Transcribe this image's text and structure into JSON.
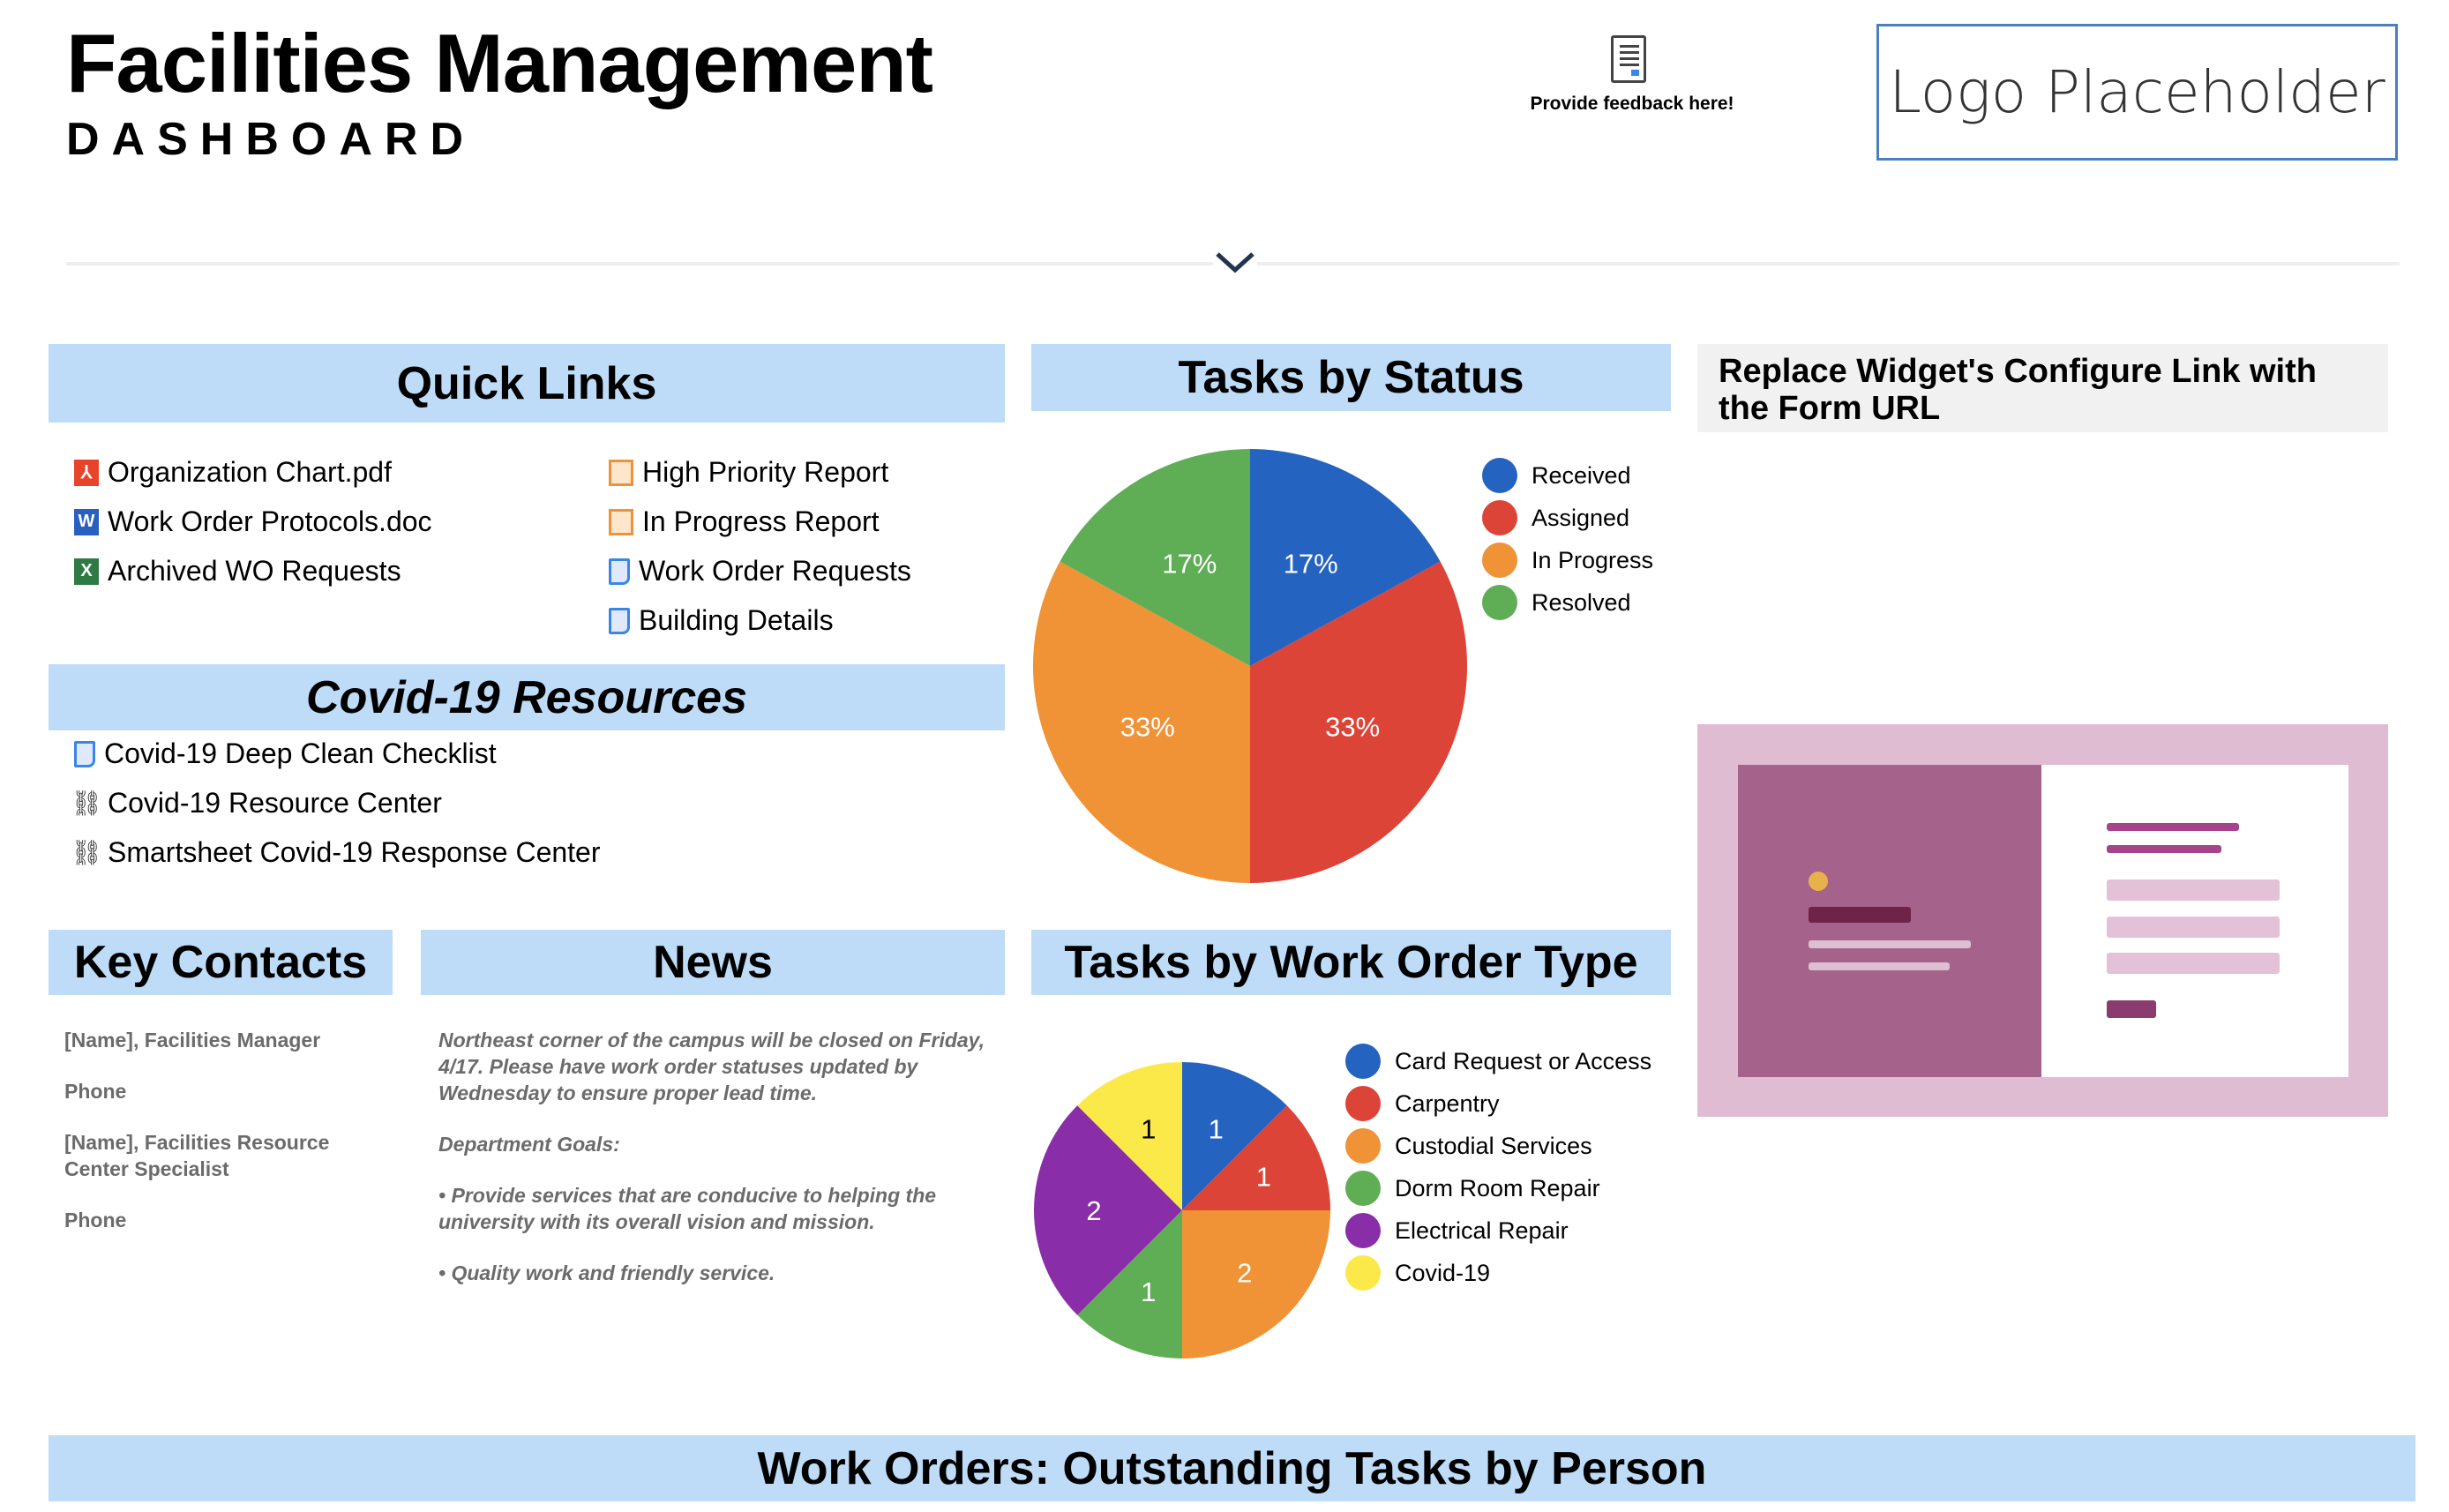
{
  "header": {
    "title": "Facilities Management",
    "subtitle": "DASHBOARD",
    "feedback_label": "Provide feedback here!",
    "logo_text": "Logo Placeholder"
  },
  "quick_links": {
    "title": "Quick Links",
    "left": [
      {
        "label": "Organization Chart.pdf",
        "icon": "pdf-icon",
        "glyph": "⅄"
      },
      {
        "label": "Work Order Protocols.doc",
        "icon": "word-icon",
        "glyph": "W"
      },
      {
        "label": "Archived WO Requests",
        "icon": "excel-icon",
        "glyph": "X"
      }
    ],
    "right": [
      {
        "label": "High Priority Report",
        "icon": "report-icon"
      },
      {
        "label": "In Progress Report",
        "icon": "report-icon"
      },
      {
        "label": "Work Order Requests",
        "icon": "sheet-icon"
      },
      {
        "label": "Building Details",
        "icon": "sheet-icon"
      }
    ]
  },
  "covid": {
    "title": "Covid-19 Resources",
    "items": [
      {
        "label": "Covid-19 Deep Clean Checklist",
        "icon": "sheet-icon"
      },
      {
        "label": "Covid-19 Resource Center",
        "icon": "link-icon",
        "glyph": "🔗"
      },
      {
        "label": "Smartsheet Covid-19 Response Center",
        "icon": "link-icon",
        "glyph": "🔗"
      }
    ]
  },
  "contacts": {
    "title": "Key Contacts",
    "lines": [
      "[Name], Facilities Manager",
      "Phone",
      "[Name],  Facilities Resource Center Specialist",
      "Phone"
    ]
  },
  "news": {
    "title": "News",
    "paragraphs": [
      "Northeast corner of the campus will be closed on Friday, 4/17.  Please have work order statuses updated by Wednesday to ensure proper lead time.",
      "Department Goals:",
      "• Provide services that are conducive to helping the university with its overall vision and mission.",
      "• Quality work and friendly service."
    ]
  },
  "widget": {
    "title": "Replace Widget's Configure Link with the Form URL"
  },
  "bottom": {
    "title": "Work Orders: Outstanding Tasks by Person"
  },
  "chart_data": [
    {
      "type": "pie",
      "title": "Tasks by Status",
      "categories": [
        "Received",
        "Assigned",
        "In Progress",
        "Resolved"
      ],
      "values": [
        17,
        33,
        33,
        17
      ],
      "labels": [
        "17%",
        "33%",
        "33%",
        "17%"
      ],
      "colors": [
        "#2563c0",
        "#dc4437",
        "#f09236",
        "#5fae55"
      ],
      "legend": "right"
    },
    {
      "type": "pie",
      "title": "Tasks by Work Order Type",
      "categories": [
        "Card Request or Access",
        "Carpentry",
        "Custodial Services",
        "Dorm Room Repair",
        "Electrical Repair",
        "Covid-19"
      ],
      "values": [
        1,
        1,
        2,
        1,
        2,
        1
      ],
      "labels": [
        "1",
        "1",
        "2",
        "1",
        "2",
        "1"
      ],
      "colors": [
        "#2563c0",
        "#dc4437",
        "#f09236",
        "#5fae55",
        "#8a2da8",
        "#fbe94a"
      ],
      "legend": "right"
    }
  ]
}
